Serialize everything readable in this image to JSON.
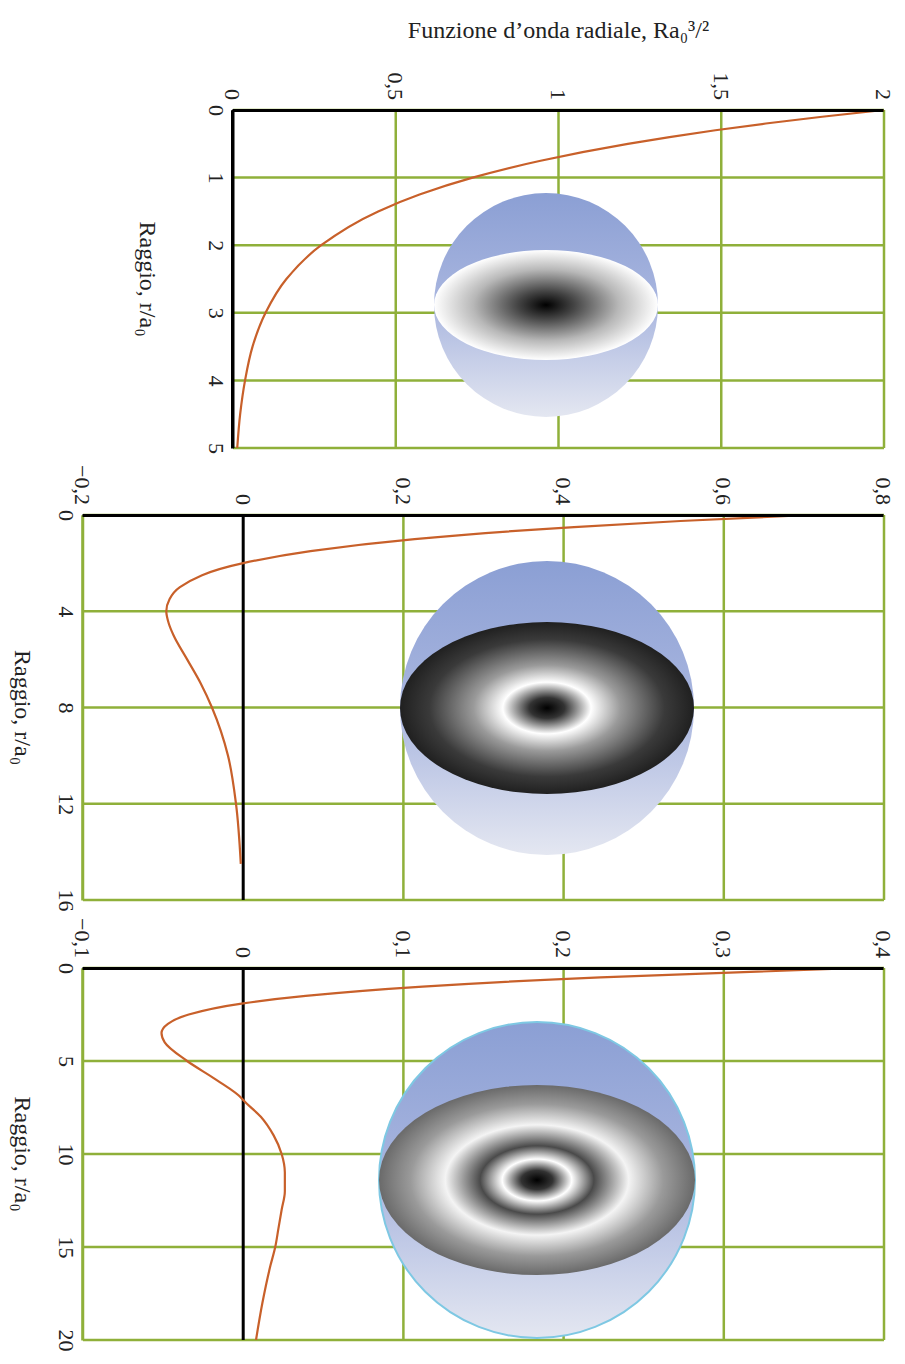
{
  "chart_data": [
    {
      "type": "line",
      "y_label": "Funzione d’onda radiale, Ra₀³/²",
      "x_label": "Raggio, r/a₀",
      "x": [
        0,
        0.1,
        0.2,
        0.3,
        0.4,
        0.5,
        0.75,
        1,
        1.25,
        1.5,
        2,
        2.5,
        3,
        3.5,
        4,
        4.5,
        5
      ],
      "series": [
        {
          "color": "#c8602a",
          "values": [
            2,
            1.81,
            1.637,
            1.482,
            1.341,
            1.213,
            0.945,
            0.736,
            0.573,
            0.446,
            0.271,
            0.164,
            0.1,
            0.06,
            0.037,
            0.022,
            0.013
          ]
        }
      ],
      "xlim": [
        0,
        5
      ],
      "xticks": [
        0,
        1,
        2,
        3,
        4,
        5
      ],
      "ylim": [
        0,
        2
      ],
      "yticks": [
        0,
        {
          "value": 0.5,
          "label": "0,5"
        },
        1,
        {
          "value": 1.5,
          "label": "1,5"
        },
        2
      ],
      "grid": true
    },
    {
      "type": "line",
      "x_label": "Raggio, r/a₀",
      "x": [
        0,
        0.25,
        0.5,
        1,
        1.5,
        2,
        3,
        3.5,
        4,
        4.5,
        5,
        6,
        7,
        8,
        10,
        12,
        14.5
      ],
      "series": [
        {
          "color": "#c8602a",
          "values": [
            0.707,
            0.546,
            0.413,
            0.214,
            0.084,
            0,
            -0.079,
            -0.092,
            -0.096,
            -0.093,
            -0.087,
            -0.07,
            -0.053,
            -0.039,
            -0.019,
            -0.009,
            -0.003
          ]
        }
      ],
      "xlim": [
        0,
        16
      ],
      "xticks": [
        0,
        4,
        8,
        12,
        16
      ],
      "ylim": [
        -0.2,
        0.8
      ],
      "yticks": [
        {
          "value": -0.2,
          "label": "−0,2"
        },
        0,
        {
          "value": 0.2,
          "label": "0,2"
        },
        {
          "value": 0.4,
          "label": "0,4"
        },
        {
          "value": 0.6,
          "label": "0,6"
        },
        {
          "value": 0.8,
          "label": "0,8"
        }
      ],
      "grid": true
    },
    {
      "type": "line",
      "x_label": "Raggio, r/a₀",
      "x": [
        0,
        0.5,
        1,
        1.5,
        1.9,
        2.5,
        3,
        3.5,
        4,
        5,
        6,
        7,
        7.1,
        8,
        9,
        10,
        11,
        12,
        13,
        14,
        15,
        16,
        18,
        20
      ],
      "series": [
        {
          "color": "#c8602a",
          "values": [
            0.385,
            0.223,
            0.112,
            0.039,
            0,
            -0.034,
            -0.047,
            -0.051,
            -0.049,
            -0.035,
            -0.017,
            -0.001,
            0,
            0.011,
            0.019,
            0.024,
            0.026,
            0.026,
            0.024,
            0.022,
            0.02,
            0.017,
            0.012,
            0.008
          ]
        }
      ],
      "xlim": [
        0,
        20
      ],
      "xticks": [
        0,
        5,
        10,
        15,
        20
      ],
      "ylim": [
        -0.1,
        0.4
      ],
      "yticks": [
        {
          "value": -0.1,
          "label": "−0,1"
        },
        0,
        {
          "value": 0.1,
          "label": "0,1"
        },
        {
          "value": 0.2,
          "label": "0,2"
        },
        {
          "value": 0.3,
          "label": "0,3"
        },
        {
          "value": 0.4,
          "label": "0,4"
        }
      ],
      "grid": true
    }
  ]
}
